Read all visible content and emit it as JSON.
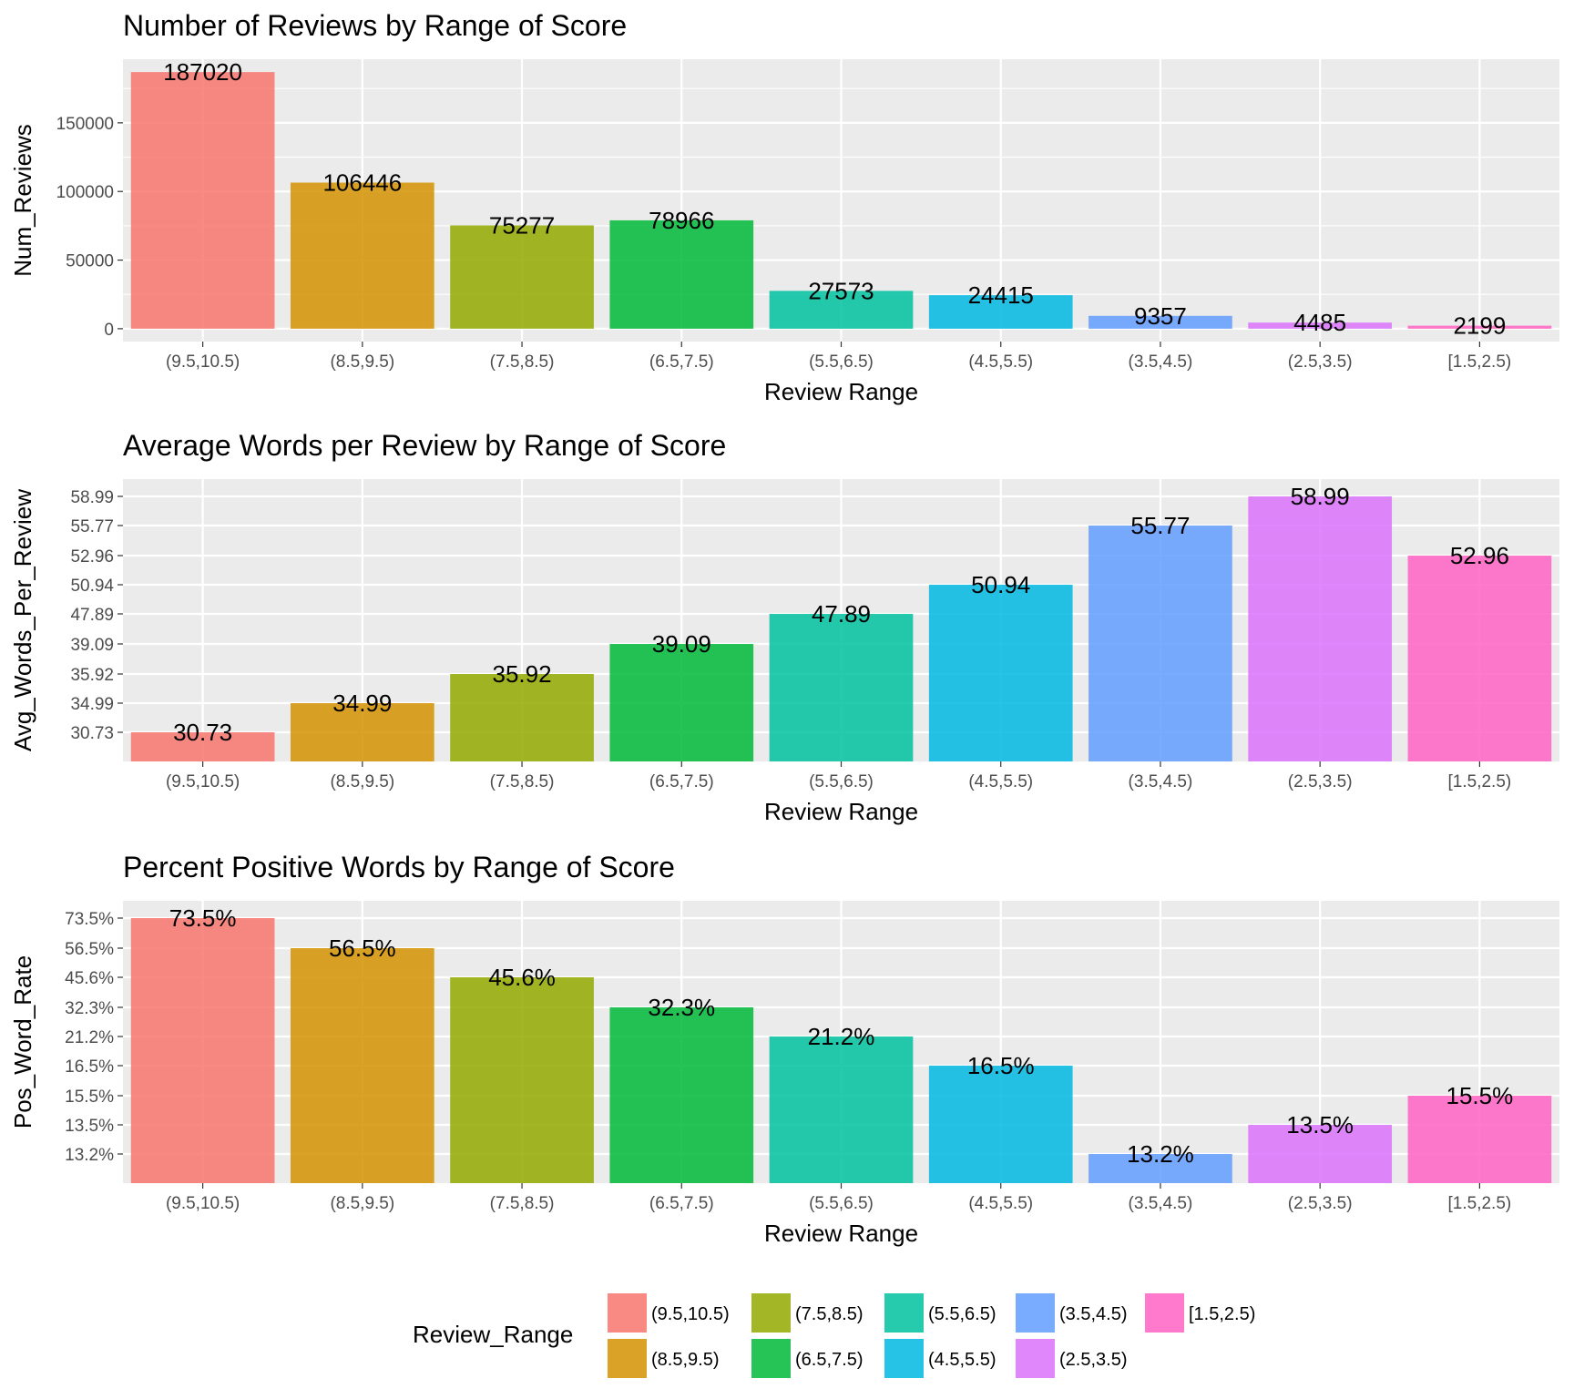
{
  "chart_data": [
    {
      "type": "bar",
      "title": "Number of Reviews by Range of Score",
      "xlabel": "Review Range",
      "ylabel": "Num_Reviews",
      "categories": [
        "(9.5,10.5)",
        "(8.5,9.5)",
        "(7.5,8.5)",
        "(6.5,7.5)",
        "(5.5,6.5)",
        "(4.5,5.5)",
        "(3.5,4.5)",
        "(2.5,3.5)",
        "[1.5,2.5)"
      ],
      "values": [
        187020,
        106446,
        75277,
        78966,
        27573,
        24415,
        9357,
        4485,
        2199
      ],
      "labels": [
        "187020",
        "106446",
        "75277",
        "78966",
        "27573",
        "24415",
        "9357",
        "4485",
        "2199"
      ],
      "yticks": [
        "0",
        "50000",
        "100000",
        "150000"
      ],
      "ylim": [
        -9351,
        196371
      ],
      "grid": true
    },
    {
      "type": "bar",
      "title": "Average Words per Review by Range of Score",
      "xlabel": "Review Range",
      "ylabel": "Avg_Words_Per_Review",
      "categories": [
        "(9.5,10.5)",
        "(8.5,9.5)",
        "(7.5,8.5)",
        "(6.5,7.5)",
        "(5.5,6.5)",
        "(4.5,5.5)",
        "(3.5,4.5)",
        "(2.5,3.5)",
        "[1.5,2.5)"
      ],
      "values": [
        30.73,
        34.99,
        35.92,
        39.09,
        47.89,
        50.94,
        55.77,
        58.99,
        52.96
      ],
      "labels": [
        "30.73",
        "34.99",
        "35.92",
        "39.09",
        "47.89",
        "50.94",
        "55.77",
        "58.99",
        "52.96"
      ],
      "scale": "discrete",
      "yticks": [
        "30.73",
        "34.99",
        "35.92",
        "39.09",
        "47.89",
        "50.94",
        "52.96",
        "55.77",
        "58.99"
      ],
      "grid": true
    },
    {
      "type": "bar",
      "title": "Percent Positive Words by Range of Score",
      "xlabel": "Review Range",
      "ylabel": "Pos_Word_Rate",
      "categories": [
        "(9.5,10.5)",
        "(8.5,9.5)",
        "(7.5,8.5)",
        "(6.5,7.5)",
        "(5.5,6.5)",
        "(4.5,5.5)",
        "(3.5,4.5)",
        "(2.5,3.5)",
        "[1.5,2.5)"
      ],
      "values": [
        73.5,
        56.5,
        45.6,
        32.3,
        21.2,
        16.5,
        13.2,
        13.5,
        15.5
      ],
      "labels": [
        "73.5%",
        "56.5%",
        "45.6%",
        "32.3%",
        "21.2%",
        "16.5%",
        "13.2%",
        "13.5%",
        "15.5%"
      ],
      "scale": "discrete",
      "yticks": [
        "13.2%",
        "13.5%",
        "15.5%",
        "16.5%",
        "21.2%",
        "32.3%",
        "45.6%",
        "56.5%",
        "73.5%"
      ],
      "grid": true
    }
  ],
  "legend": {
    "title": "Review_Range",
    "placement": "bottom",
    "items": [
      {
        "label": "(9.5,10.5)",
        "color": "#F8766D"
      },
      {
        "label": "(8.5,9.5)",
        "color": "#D39200"
      },
      {
        "label": "(7.5,8.5)",
        "color": "#93AA00"
      },
      {
        "label": "(6.5,7.5)",
        "color": "#00BA38"
      },
      {
        "label": "(5.5,6.5)",
        "color": "#00C19F"
      },
      {
        "label": "(4.5,5.5)",
        "color": "#00B9E3"
      },
      {
        "label": "(3.5,4.5)",
        "color": "#619CFF"
      },
      {
        "label": "(2.5,3.5)",
        "color": "#DB72FB"
      },
      {
        "label": "[1.5,2.5)",
        "color": "#FF61C3"
      }
    ]
  },
  "colors": {
    "panel_bg": "#EBEBEB",
    "grid_major": "#FFFFFF",
    "tick_text": "#4D4D4D"
  }
}
